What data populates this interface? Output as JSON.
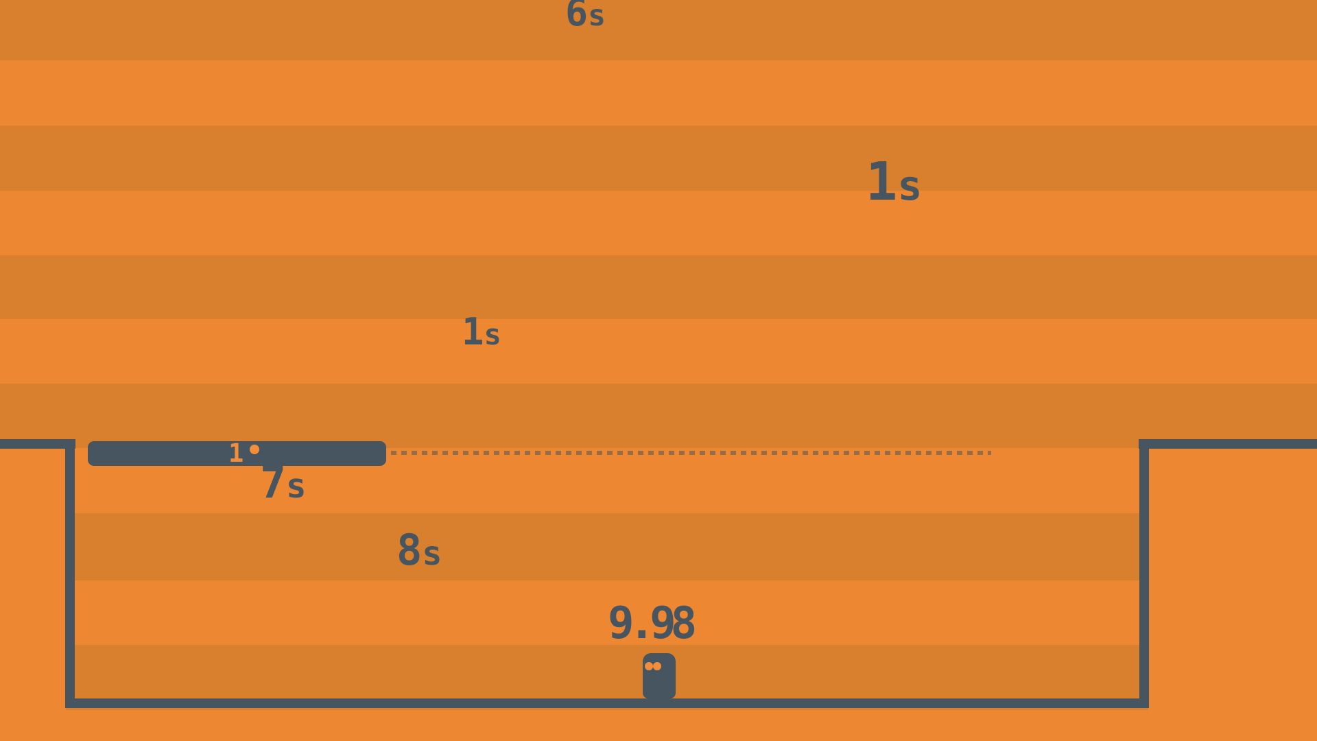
{
  "colors": {
    "stripe_dark": "#d8802e",
    "stripe_light": "#ee8732",
    "slate": "#46555f",
    "accent": "#f28d3b"
  },
  "timers": [
    {
      "id": "top-center",
      "value": "6",
      "unit": "s"
    },
    {
      "id": "upper-right-large",
      "value": "1",
      "unit": "s"
    },
    {
      "id": "middle",
      "value": "1",
      "unit": "s"
    },
    {
      "id": "below-platform",
      "value": "7",
      "unit": "s"
    },
    {
      "id": "lower-left",
      "value": "8",
      "unit": "s"
    }
  ],
  "hud": {
    "countdown": "9.98"
  },
  "platform": {
    "label": "1"
  }
}
